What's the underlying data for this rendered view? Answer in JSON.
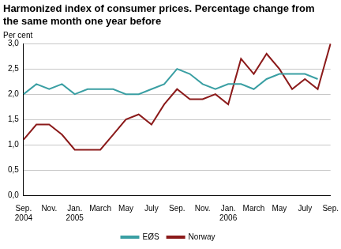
{
  "chart_data": {
    "type": "line",
    "title": "Harmonized index of consumer prices. Percentage change from the same month one year before",
    "y_label": "Per cent",
    "categories": [
      "Sep. 2004",
      null,
      "Nov.",
      null,
      "Jan. 2005",
      null,
      "March",
      null,
      "May",
      null,
      "July",
      null,
      "Sep.",
      null,
      "Nov.",
      null,
      "Jan. 2006",
      null,
      "March",
      null,
      "May",
      null,
      "July",
      null,
      "Sep."
    ],
    "series": [
      {
        "name": "EØS",
        "color": "#3a9fa3",
        "values": [
          2.0,
          2.2,
          2.1,
          2.2,
          2.0,
          2.1,
          2.1,
          2.1,
          2.0,
          2.0,
          2.1,
          2.2,
          2.5,
          2.4,
          2.2,
          2.1,
          2.2,
          2.2,
          2.1,
          2.3,
          2.4,
          2.4,
          2.4,
          2.3,
          null
        ]
      },
      {
        "name": "Norway",
        "color": "#8b1a1a",
        "values": [
          1.1,
          1.4,
          1.4,
          1.2,
          0.9,
          0.9,
          0.9,
          1.2,
          1.5,
          1.6,
          1.4,
          1.8,
          2.1,
          1.9,
          1.9,
          2.0,
          1.8,
          2.7,
          2.4,
          2.8,
          2.5,
          2.1,
          2.3,
          2.1,
          3.0
        ]
      }
    ],
    "ylim": [
      0,
      3
    ],
    "yticks": [
      {
        "value": 0,
        "label": "0,0"
      },
      {
        "value": 0.5,
        "label": "0,5"
      },
      {
        "value": 1,
        "label": "1,0"
      },
      {
        "value": 1.5,
        "label": "1,5"
      },
      {
        "value": 2,
        "label": "2,0"
      },
      {
        "value": 2.5,
        "label": "2,5"
      },
      {
        "value": 3,
        "label": "3,0"
      }
    ],
    "grid": true,
    "legend": "bottom"
  }
}
